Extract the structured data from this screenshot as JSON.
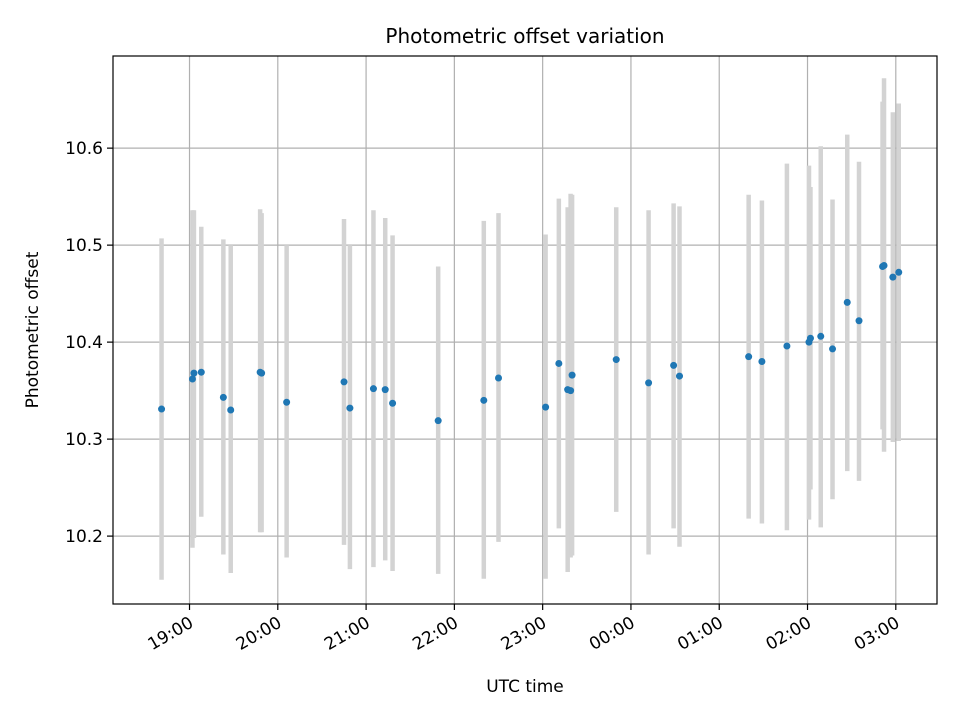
{
  "chart_data": {
    "type": "scatter",
    "title": "Photometric offset variation",
    "xlabel": "UTC time",
    "ylabel": "Photometric offset",
    "x_ticks": [
      "19:00",
      "20:00",
      "21:00",
      "22:00",
      "23:00",
      "00:00",
      "01:00",
      "02:00",
      "03:00"
    ],
    "y_ticks": [
      "10.2",
      "10.3",
      "10.4",
      "10.5",
      "10.6"
    ],
    "xlim": [
      "18:08",
      "03:28"
    ],
    "ylim": [
      10.13,
      10.695
    ],
    "grid": true,
    "colors": {
      "point": "#1f77b4",
      "errorbar": "#d3d3d3",
      "grid": "#b0b0b0"
    },
    "points": [
      {
        "time": "18:41",
        "y": 10.331,
        "low": 10.155,
        "high": 10.507
      },
      {
        "time": "19:02",
        "y": 10.362,
        "low": 10.188,
        "high": 10.536
      },
      {
        "time": "19:03",
        "y": 10.368,
        "low": 10.198,
        "high": 10.536
      },
      {
        "time": "19:08",
        "y": 10.369,
        "low": 10.22,
        "high": 10.519
      },
      {
        "time": "19:23",
        "y": 10.343,
        "low": 10.181,
        "high": 10.506
      },
      {
        "time": "19:28",
        "y": 10.33,
        "low": 10.162,
        "high": 10.5
      },
      {
        "time": "19:48",
        "y": 10.369,
        "low": 10.204,
        "high": 10.537
      },
      {
        "time": "19:49",
        "y": 10.368,
        "low": 10.204,
        "high": 10.533
      },
      {
        "time": "20:06",
        "y": 10.338,
        "low": 10.178,
        "high": 10.5
      },
      {
        "time": "20:45",
        "y": 10.359,
        "low": 10.191,
        "high": 10.527
      },
      {
        "time": "20:49",
        "y": 10.332,
        "low": 10.166,
        "high": 10.5
      },
      {
        "time": "21:05",
        "y": 10.352,
        "low": 10.168,
        "high": 10.536
      },
      {
        "time": "21:13",
        "y": 10.351,
        "low": 10.175,
        "high": 10.528
      },
      {
        "time": "21:18",
        "y": 10.337,
        "low": 10.164,
        "high": 10.51
      },
      {
        "time": "21:49",
        "y": 10.319,
        "low": 10.161,
        "high": 10.478
      },
      {
        "time": "22:20",
        "y": 10.34,
        "low": 10.156,
        "high": 10.525
      },
      {
        "time": "22:30",
        "y": 10.363,
        "low": 10.194,
        "high": 10.533
      },
      {
        "time": "23:02",
        "y": 10.333,
        "low": 10.156,
        "high": 10.511
      },
      {
        "time": "23:11",
        "y": 10.378,
        "low": 10.208,
        "high": 10.548
      },
      {
        "time": "23:17",
        "y": 10.351,
        "low": 10.163,
        "high": 10.539
      },
      {
        "time": "23:19",
        "y": 10.35,
        "low": 10.178,
        "high": 10.553
      },
      {
        "time": "23:20",
        "y": 10.366,
        "low": 10.18,
        "high": 10.552
      },
      {
        "time": "23:50",
        "y": 10.382,
        "low": 10.225,
        "high": 10.539
      },
      {
        "time": "00:12",
        "y": 10.358,
        "low": 10.181,
        "high": 10.536
      },
      {
        "time": "00:29",
        "y": 10.376,
        "low": 10.208,
        "high": 10.543
      },
      {
        "time": "00:33",
        "y": 10.365,
        "low": 10.189,
        "high": 10.54
      },
      {
        "time": "01:20",
        "y": 10.385,
        "low": 10.218,
        "high": 10.552
      },
      {
        "time": "01:29",
        "y": 10.38,
        "low": 10.213,
        "high": 10.546
      },
      {
        "time": "01:46",
        "y": 10.396,
        "low": 10.206,
        "high": 10.584
      },
      {
        "time": "02:01",
        "y": 10.4,
        "low": 10.217,
        "high": 10.582
      },
      {
        "time": "02:02",
        "y": 10.404,
        "low": 10.248,
        "high": 10.56
      },
      {
        "time": "02:09",
        "y": 10.406,
        "low": 10.209,
        "high": 10.602
      },
      {
        "time": "02:17",
        "y": 10.393,
        "low": 10.238,
        "high": 10.547
      },
      {
        "time": "02:27",
        "y": 10.441,
        "low": 10.267,
        "high": 10.614
      },
      {
        "time": "02:35",
        "y": 10.422,
        "low": 10.257,
        "high": 10.586
      },
      {
        "time": "02:51",
        "y": 10.478,
        "low": 10.31,
        "high": 10.648
      },
      {
        "time": "02:52",
        "y": 10.479,
        "low": 10.287,
        "high": 10.672
      },
      {
        "time": "02:58",
        "y": 10.467,
        "low": 10.297,
        "high": 10.637
      },
      {
        "time": "03:02",
        "y": 10.472,
        "low": 10.298,
        "high": 10.646
      }
    ]
  }
}
